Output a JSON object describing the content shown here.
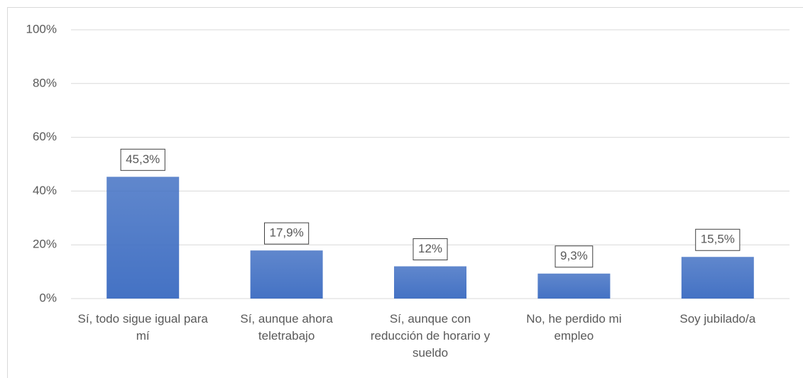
{
  "chart_data": {
    "type": "bar",
    "categories": [
      "Sí, todo sigue igual para mí",
      "Sí, aunque ahora teletrabajo",
      "Sí, aunque con reducción de horario y sueldo",
      "No, he perdido mi empleo",
      "Soy jubilado/a"
    ],
    "values": [
      45.3,
      17.9,
      12,
      9.3,
      15.5
    ],
    "value_labels": [
      "45,3%",
      "17,9%",
      "12%",
      "9,3%",
      "15,5%"
    ],
    "color": "#4472c4",
    "ylim": [
      0,
      100
    ],
    "yticks": [
      {
        "value": 0,
        "label": "0%"
      },
      {
        "value": 20,
        "label": "20%"
      },
      {
        "value": 40,
        "label": "40%"
      },
      {
        "value": 60,
        "label": "60%"
      },
      {
        "value": 80,
        "label": "80%"
      },
      {
        "value": 100,
        "label": "100%"
      }
    ],
    "grid": true
  }
}
